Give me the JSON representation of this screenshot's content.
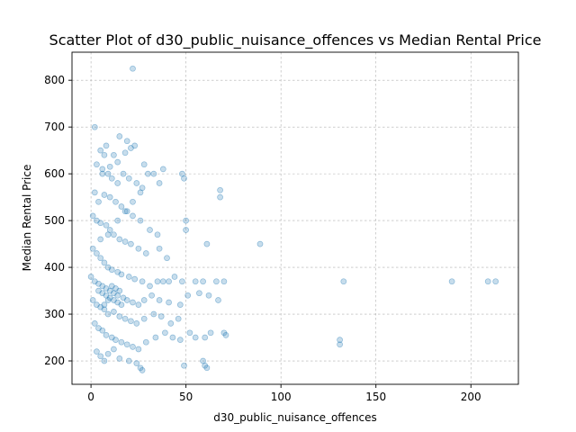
{
  "chart_data": {
    "type": "scatter",
    "title": "Scatter Plot of d30_public_nuisance_offences vs Median Rental Price",
    "xlabel": "d30_public_nuisance_offences",
    "ylabel": "Median Rental Price",
    "xlim": [
      -10,
      225
    ],
    "ylim": [
      150,
      860
    ],
    "xticks": [
      0,
      50,
      100,
      150,
      200
    ],
    "yticks": [
      200,
      300,
      400,
      500,
      600,
      700,
      800
    ],
    "grid": true,
    "point_color": "#1f77b4",
    "point_alpha": 0.25,
    "points": [
      [
        22,
        825
      ],
      [
        2,
        700
      ],
      [
        5,
        650
      ],
      [
        8,
        660
      ],
      [
        12,
        640
      ],
      [
        15,
        680
      ],
      [
        19,
        670
      ],
      [
        23,
        660
      ],
      [
        28,
        620
      ],
      [
        33,
        600
      ],
      [
        38,
        610
      ],
      [
        48,
        600
      ],
      [
        68,
        565
      ],
      [
        68,
        550
      ],
      [
        3,
        620
      ],
      [
        6,
        610
      ],
      [
        9,
        600
      ],
      [
        11,
        590
      ],
      [
        14,
        580
      ],
      [
        17,
        600
      ],
      [
        20,
        590
      ],
      [
        24,
        580
      ],
      [
        27,
        570
      ],
      [
        30,
        600
      ],
      [
        36,
        580
      ],
      [
        49,
        590
      ],
      [
        2,
        560
      ],
      [
        4,
        540
      ],
      [
        7,
        555
      ],
      [
        10,
        550
      ],
      [
        13,
        540
      ],
      [
        16,
        530
      ],
      [
        19,
        520
      ],
      [
        22,
        510
      ],
      [
        26,
        500
      ],
      [
        31,
        480
      ],
      [
        35,
        470
      ],
      [
        50,
        500
      ],
      [
        50,
        480
      ],
      [
        1,
        510
      ],
      [
        3,
        500
      ],
      [
        5,
        495
      ],
      [
        8,
        490
      ],
      [
        10,
        480
      ],
      [
        12,
        470
      ],
      [
        15,
        460
      ],
      [
        18,
        455
      ],
      [
        21,
        450
      ],
      [
        25,
        440
      ],
      [
        29,
        430
      ],
      [
        36,
        440
      ],
      [
        40,
        420
      ],
      [
        61,
        450
      ],
      [
        89,
        450
      ],
      [
        1,
        440
      ],
      [
        3,
        430
      ],
      [
        5,
        420
      ],
      [
        7,
        410
      ],
      [
        9,
        400
      ],
      [
        11,
        395
      ],
      [
        14,
        390
      ],
      [
        16,
        385
      ],
      [
        20,
        380
      ],
      [
        23,
        375
      ],
      [
        27,
        370
      ],
      [
        31,
        360
      ],
      [
        35,
        370
      ],
      [
        38,
        370
      ],
      [
        41,
        370
      ],
      [
        44,
        380
      ],
      [
        48,
        370
      ],
      [
        55,
        370
      ],
      [
        59,
        370
      ],
      [
        66,
        370
      ],
      [
        70,
        370
      ],
      [
        133,
        370
      ],
      [
        190,
        370
      ],
      [
        209,
        370
      ],
      [
        213,
        370
      ],
      [
        0,
        380
      ],
      [
        2,
        370
      ],
      [
        4,
        365
      ],
      [
        6,
        360
      ],
      [
        8,
        355
      ],
      [
        10,
        350
      ],
      [
        12,
        345
      ],
      [
        14,
        340
      ],
      [
        17,
        335
      ],
      [
        19,
        330
      ],
      [
        22,
        325
      ],
      [
        25,
        320
      ],
      [
        28,
        330
      ],
      [
        32,
        340
      ],
      [
        36,
        330
      ],
      [
        41,
        325
      ],
      [
        47,
        320
      ],
      [
        51,
        340
      ],
      [
        57,
        345
      ],
      [
        62,
        340
      ],
      [
        67,
        330
      ],
      [
        1,
        330
      ],
      [
        3,
        320
      ],
      [
        5,
        315
      ],
      [
        7,
        310
      ],
      [
        9,
        300
      ],
      [
        12,
        305
      ],
      [
        15,
        295
      ],
      [
        18,
        290
      ],
      [
        21,
        285
      ],
      [
        24,
        280
      ],
      [
        28,
        290
      ],
      [
        33,
        300
      ],
      [
        37,
        295
      ],
      [
        42,
        280
      ],
      [
        46,
        290
      ],
      [
        52,
        260
      ],
      [
        55,
        250
      ],
      [
        60,
        250
      ],
      [
        63,
        260
      ],
      [
        70,
        260
      ],
      [
        71,
        255
      ],
      [
        131,
        245
      ],
      [
        131,
        235
      ],
      [
        2,
        280
      ],
      [
        4,
        270
      ],
      [
        6,
        265
      ],
      [
        8,
        255
      ],
      [
        11,
        250
      ],
      [
        13,
        245
      ],
      [
        16,
        240
      ],
      [
        19,
        235
      ],
      [
        22,
        230
      ],
      [
        25,
        225
      ],
      [
        29,
        240
      ],
      [
        34,
        250
      ],
      [
        39,
        260
      ],
      [
        43,
        250
      ],
      [
        47,
        245
      ],
      [
        3,
        220
      ],
      [
        5,
        210
      ],
      [
        7,
        200
      ],
      [
        9,
        215
      ],
      [
        12,
        225
      ],
      [
        15,
        205
      ],
      [
        20,
        200
      ],
      [
        24,
        195
      ],
      [
        26,
        185
      ],
      [
        27,
        180
      ],
      [
        49,
        190
      ],
      [
        59,
        200
      ],
      [
        60,
        190
      ],
      [
        61,
        185
      ],
      [
        5,
        460
      ],
      [
        9,
        470
      ],
      [
        14,
        500
      ],
      [
        18,
        520
      ],
      [
        22,
        540
      ],
      [
        26,
        560
      ],
      [
        6,
        600
      ],
      [
        10,
        615
      ],
      [
        14,
        625
      ],
      [
        18,
        645
      ],
      [
        21,
        655
      ],
      [
        7,
        640
      ],
      [
        4,
        350
      ],
      [
        6,
        345
      ],
      [
        8,
        340
      ],
      [
        10,
        335
      ],
      [
        12,
        330
      ],
      [
        14,
        325
      ],
      [
        16,
        320
      ],
      [
        11,
        360
      ],
      [
        13,
        355
      ],
      [
        15,
        350
      ],
      [
        9,
        330
      ],
      [
        7,
        320
      ]
    ]
  }
}
